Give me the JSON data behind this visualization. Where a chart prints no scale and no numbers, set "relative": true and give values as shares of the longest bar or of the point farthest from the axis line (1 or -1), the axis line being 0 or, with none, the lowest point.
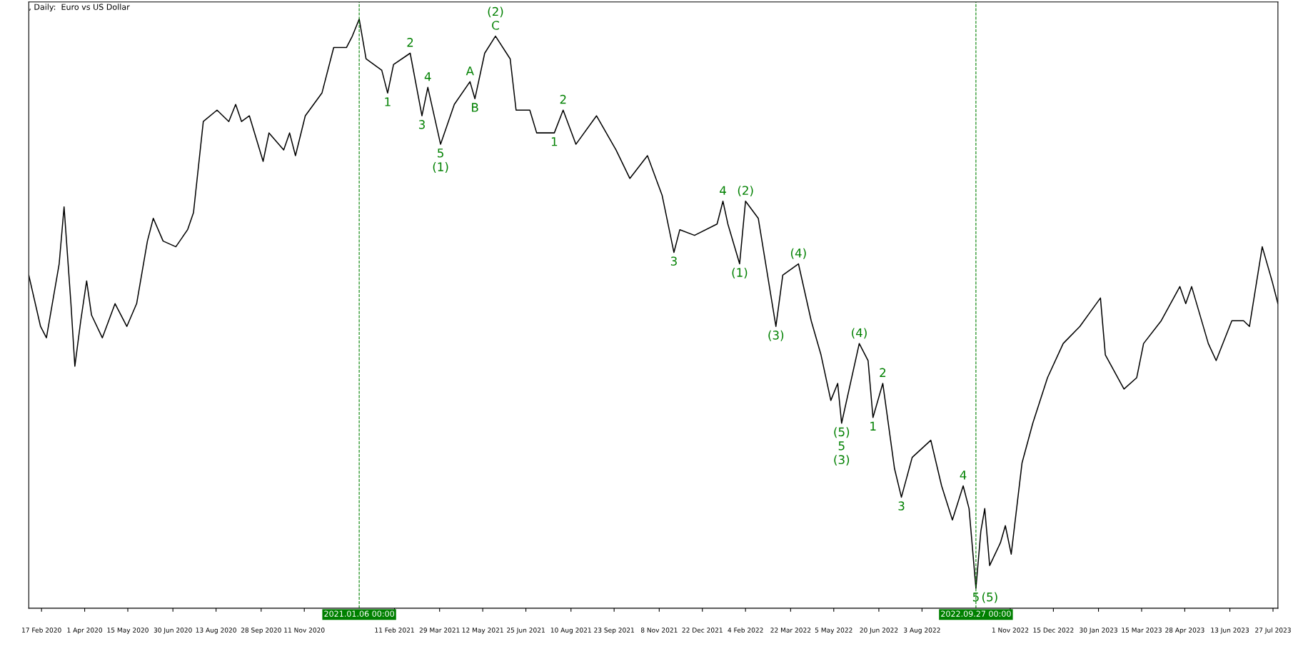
{
  "chart_data": {
    "type": "line",
    "title": ", Daily:  Euro vs US Dollar",
    "relative": true,
    "grid": false,
    "legend": false,
    "marker": "none",
    "line_style": "solid",
    "x": [
      "2020-02-04",
      "2020-02-16",
      "2020-02-22",
      "2020-03-06",
      "2020-03-11",
      "2020-03-18",
      "2020-03-22",
      "2020-03-28",
      "2020-04-03",
      "2020-04-08",
      "2020-04-19",
      "2020-05-02",
      "2020-05-14",
      "2020-05-24",
      "2020-06-04",
      "2020-06-10",
      "2020-06-20",
      "2020-07-03",
      "2020-07-15",
      "2020-07-21",
      "2020-07-31",
      "2020-08-14",
      "2020-08-26",
      "2020-09-02",
      "2020-09-08",
      "2020-09-16",
      "2020-09-30",
      "2020-10-06",
      "2020-10-21",
      "2020-10-27",
      "2020-11-02",
      "2020-11-12",
      "2020-11-29",
      "2020-12-11",
      "2020-12-24",
      "2020-12-30",
      "2021-01-06",
      "2021-01-13",
      "2021-01-29",
      "2021-02-04",
      "2021-02-10",
      "2021-02-27",
      "2021-03-11",
      "2021-03-17",
      "2021-03-30",
      "2021-04-13",
      "2021-04-29",
      "2021-05-04",
      "2021-05-14",
      "2021-05-25",
      "2021-06-09",
      "2021-06-15",
      "2021-06-29",
      "2021-07-06",
      "2021-07-24",
      "2021-08-02",
      "2021-08-15",
      "2021-09-05",
      "2021-09-25",
      "2021-10-09",
      "2021-10-27",
      "2021-11-11",
      "2021-11-23",
      "2021-11-29",
      "2021-12-14",
      "2022-01-06",
      "2022-01-12",
      "2022-01-17",
      "2022-01-29",
      "2022-02-04",
      "2022-02-17",
      "2022-03-07",
      "2022-03-14",
      "2022-03-30",
      "2022-04-12",
      "2022-04-22",
      "2022-05-02",
      "2022-05-09",
      "2022-05-13",
      "2022-05-31",
      "2022-06-09",
      "2022-06-14",
      "2022-06-24",
      "2022-07-06",
      "2022-07-13",
      "2022-07-24",
      "2022-08-12",
      "2022-08-23",
      "2022-09-03",
      "2022-09-14",
      "2022-09-20",
      "2022-09-27",
      "2022-10-02",
      "2022-10-06",
      "2022-10-11",
      "2022-10-22",
      "2022-10-27",
      "2022-11-02",
      "2022-11-13",
      "2022-11-24",
      "2022-12-09",
      "2022-12-25",
      "2023-01-11",
      "2023-02-01",
      "2023-02-06",
      "2023-02-25",
      "2023-03-10",
      "2023-03-17",
      "2023-04-04",
      "2023-04-23",
      "2023-04-29",
      "2023-05-05",
      "2023-05-22",
      "2023-05-30",
      "2023-06-15",
      "2023-06-27",
      "2023-07-03",
      "2023-07-16",
      "2023-07-26",
      "2023-08-01"
    ],
    "series": [
      {
        "color": "#000000",
        "values": [
          0.55,
          0.46,
          0.44,
          0.57,
          0.67,
          0.5,
          0.39,
          0.47,
          0.54,
          0.48,
          0.44,
          0.5,
          0.46,
          0.5,
          0.61,
          0.65,
          0.61,
          0.6,
          0.63,
          0.66,
          0.82,
          0.84,
          0.82,
          0.85,
          0.82,
          0.83,
          0.75,
          0.8,
          0.77,
          0.8,
          0.76,
          0.83,
          0.87,
          0.95,
          0.95,
          0.97,
          1,
          0.93,
          0.91,
          0.87,
          0.92,
          0.94,
          0.83,
          0.88,
          0.78,
          0.85,
          0.89,
          0.86,
          0.94,
          0.97,
          0.93,
          0.84,
          0.84,
          0.8,
          0.8,
          0.84,
          0.78,
          0.83,
          0.77,
          0.72,
          0.76,
          0.69,
          0.59,
          0.63,
          0.62,
          0.64,
          0.68,
          0.64,
          0.57,
          0.68,
          0.65,
          0.46,
          0.55,
          0.57,
          0.47,
          0.41,
          0.33,
          0.36,
          0.29,
          0.43,
          0.4,
          0.3,
          0.36,
          0.21,
          0.16,
          0.23,
          0.26,
          0.18,
          0.12,
          0.18,
          0.14,
          0,
          0.1,
          0.14,
          0.04,
          0.08,
          0.11,
          0.06,
          0.22,
          0.29,
          0.37,
          0.43,
          0.46,
          0.51,
          0.41,
          0.35,
          0.37,
          0.43,
          0.47,
          0.53,
          0.5,
          0.53,
          0.43,
          0.4,
          0.47,
          0.47,
          0.46,
          0.6,
          0.54,
          0.5
        ]
      }
    ],
    "xlim": [
      "2020-02-04",
      "2023-08-01"
    ],
    "xticks": [
      {
        "value": "2020-02-17",
        "label": "17 Feb 2020"
      },
      {
        "value": "2020-04-01",
        "label": "1 Apr 2020"
      },
      {
        "value": "2020-05-15",
        "label": "15 May 2020"
      },
      {
        "value": "2020-06-30",
        "label": "30 Jun 2020"
      },
      {
        "value": "2020-08-13",
        "label": "13 Aug 2020"
      },
      {
        "value": "2020-09-28",
        "label": "28 Sep 2020"
      },
      {
        "value": "2020-11-11",
        "label": "11 Nov 2020"
      },
      {
        "value": "2021-02-11",
        "label": "11 Feb 2021"
      },
      {
        "value": "2021-03-29",
        "label": "29 Mar 2021"
      },
      {
        "value": "2021-05-12",
        "label": "12 May 2021"
      },
      {
        "value": "2021-06-25",
        "label": "25 Jun 2021"
      },
      {
        "value": "2021-08-10",
        "label": "10 Aug 2021"
      },
      {
        "value": "2021-09-23",
        "label": "23 Sep 2021"
      },
      {
        "value": "2021-11-08",
        "label": "8 Nov 2021"
      },
      {
        "value": "2021-12-22",
        "label": "22 Dec 2021"
      },
      {
        "value": "2022-02-04",
        "label": "4 Feb 2022"
      },
      {
        "value": "2022-03-22",
        "label": "22 Mar 2022"
      },
      {
        "value": "2022-05-05",
        "label": "5 May 2022"
      },
      {
        "value": "2022-06-20",
        "label": "20 Jun 2022"
      },
      {
        "value": "2022-08-03",
        "label": "3 Aug 2022"
      },
      {
        "value": "2022-11-01",
        "label": "1 Nov 2022"
      },
      {
        "value": "2022-12-15",
        "label": "15 Dec 2022"
      },
      {
        "value": "2023-01-30",
        "label": "30 Jan 2023"
      },
      {
        "value": "2023-03-15",
        "label": "15 Mar 2023"
      },
      {
        "value": "2023-04-28",
        "label": "28 Apr 2023"
      },
      {
        "value": "2023-06-13",
        "label": "13 Jun 2023"
      },
      {
        "value": "2023-07-27",
        "label": "27 Jul 2023"
      }
    ],
    "ref_lines": [
      {
        "axis": "x",
        "value": "2021-01-06",
        "label": "2021.01.06 00:00",
        "color": "#008000",
        "line_style": "dashed"
      },
      {
        "axis": "x",
        "value": "2022-09-27",
        "label": "2022.09.27 00:00",
        "color": "#008000",
        "line_style": "dashed"
      }
    ],
    "annotations": [
      {
        "text": "C",
        "x": "2021-05-25",
        "y": 0.97
      },
      {
        "text": "(2)",
        "x": "2021-05-25",
        "y": 0.97
      },
      {
        "text": "A",
        "x": "2021-04-29",
        "y": 0.89
      },
      {
        "text": "B",
        "x": "2021-05-04",
        "y": 0.86
      },
      {
        "text": "2",
        "x": "2021-02-27",
        "y": 0.94
      },
      {
        "text": "4",
        "x": "2021-03-17",
        "y": 0.88
      },
      {
        "text": "1",
        "x": "2021-02-04",
        "y": 0.87
      },
      {
        "text": "3",
        "x": "2021-03-11",
        "y": 0.83
      },
      {
        "text": "5",
        "x": "2021-03-30",
        "y": 0.78
      },
      {
        "text": "(1)",
        "x": "2021-03-30",
        "y": 0.78
      },
      {
        "text": "2",
        "x": "2021-08-02",
        "y": 0.84
      },
      {
        "text": "1",
        "x": "2021-07-24",
        "y": 0.8
      },
      {
        "text": "4",
        "x": "2022-01-12",
        "y": 0.68
      },
      {
        "text": "(2)",
        "x": "2022-02-04",
        "y": 0.68
      },
      {
        "text": "3",
        "x": "2021-11-23",
        "y": 0.59
      },
      {
        "text": "(1)",
        "x": "2022-01-29",
        "y": 0.57
      },
      {
        "text": "(4)",
        "x": "2022-03-30",
        "y": 0.57
      },
      {
        "text": "(3)",
        "x": "2022-03-07",
        "y": 0.46
      },
      {
        "text": "(4)",
        "x": "2022-05-31",
        "y": 0.43
      },
      {
        "text": "2",
        "x": "2022-06-24",
        "y": 0.36
      },
      {
        "text": "(5)",
        "x": "2022-05-13",
        "y": 0.29
      },
      {
        "text": "5",
        "x": "2022-05-13",
        "y": 0.29
      },
      {
        "text": "(3)",
        "x": "2022-05-13",
        "y": 0.29
      },
      {
        "text": "1",
        "x": "2022-06-14",
        "y": 0.3
      },
      {
        "text": "3",
        "x": "2022-07-13",
        "y": 0.16
      },
      {
        "text": "4",
        "x": "2022-09-14",
        "y": 0.18
      },
      {
        "text": "5",
        "x": "2022-09-27",
        "y": 0
      },
      {
        "text": "(5)",
        "x": "2022-09-27",
        "y": 0
      }
    ]
  }
}
